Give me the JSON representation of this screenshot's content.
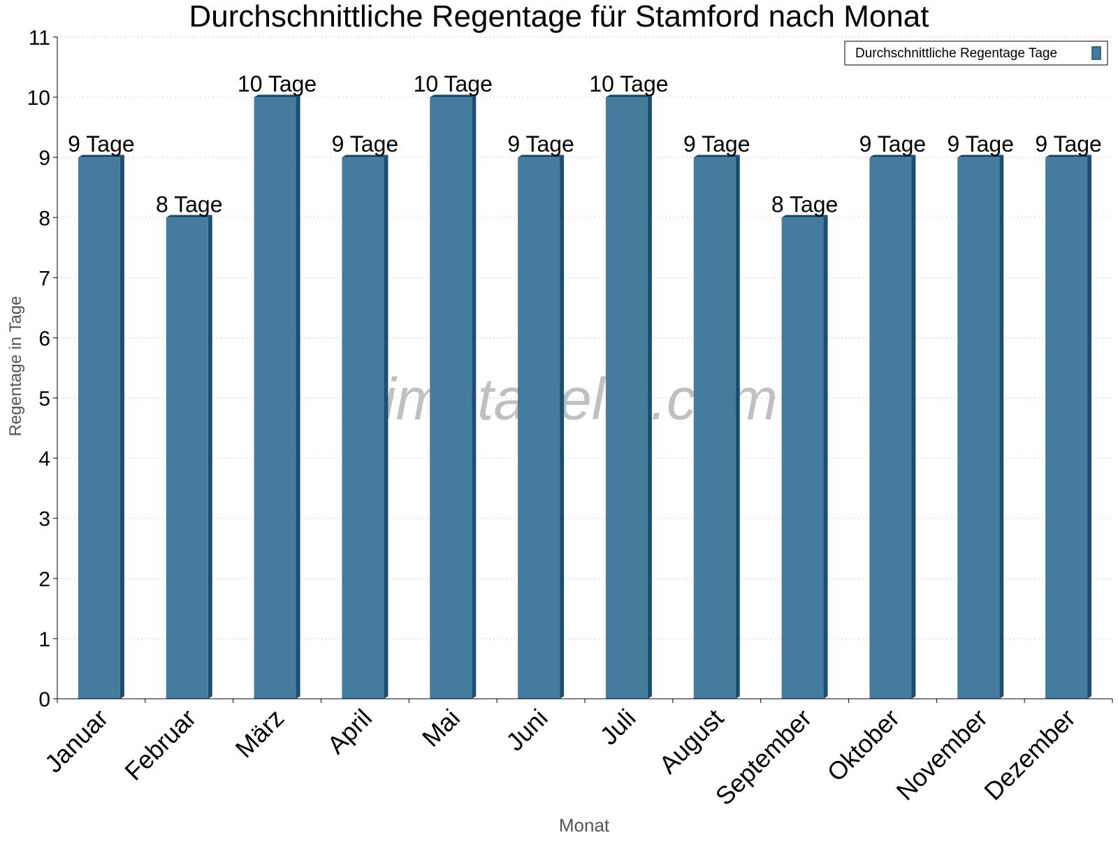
{
  "chart_data": {
    "type": "bar",
    "title": "Durchschnittliche Regentage für Stamford nach Monat",
    "xlabel": "Monat",
    "ylabel": "Regentage in Tage",
    "categories": [
      "Januar",
      "Februar",
      "März",
      "April",
      "Mai",
      "Juni",
      "Juli",
      "August",
      "September",
      "Oktober",
      "November",
      "Dezember"
    ],
    "series": [
      {
        "name": "Durchschnittliche Regentage Tage",
        "values": [
          9,
          8,
          10,
          9,
          10,
          9,
          10,
          9,
          8,
          9,
          9,
          9
        ],
        "data_labels": [
          "9 Tage",
          "8 Tage",
          "10 Tage",
          "9 Tage",
          "10 Tage",
          "9 Tage",
          "10 Tage",
          "9 Tage",
          "8 Tage",
          "9 Tage",
          "9 Tage",
          "9 Tage"
        ]
      }
    ],
    "ylim": [
      0,
      11
    ],
    "yticks": [
      "0",
      "1",
      "2",
      "3",
      "4",
      "5",
      "6",
      "7",
      "8",
      "9",
      "10",
      "11"
    ],
    "grid": "horizontal dotted",
    "legend_position": "top-right",
    "watermark": "klimatabelle.com",
    "colors": {
      "bar": "#457b9d",
      "bar_side": "#1e4d6e",
      "bar_top": "#1e4d6e",
      "grid": "#cccccc",
      "axis": "#000000",
      "watermark": "#c0c0c0"
    }
  }
}
